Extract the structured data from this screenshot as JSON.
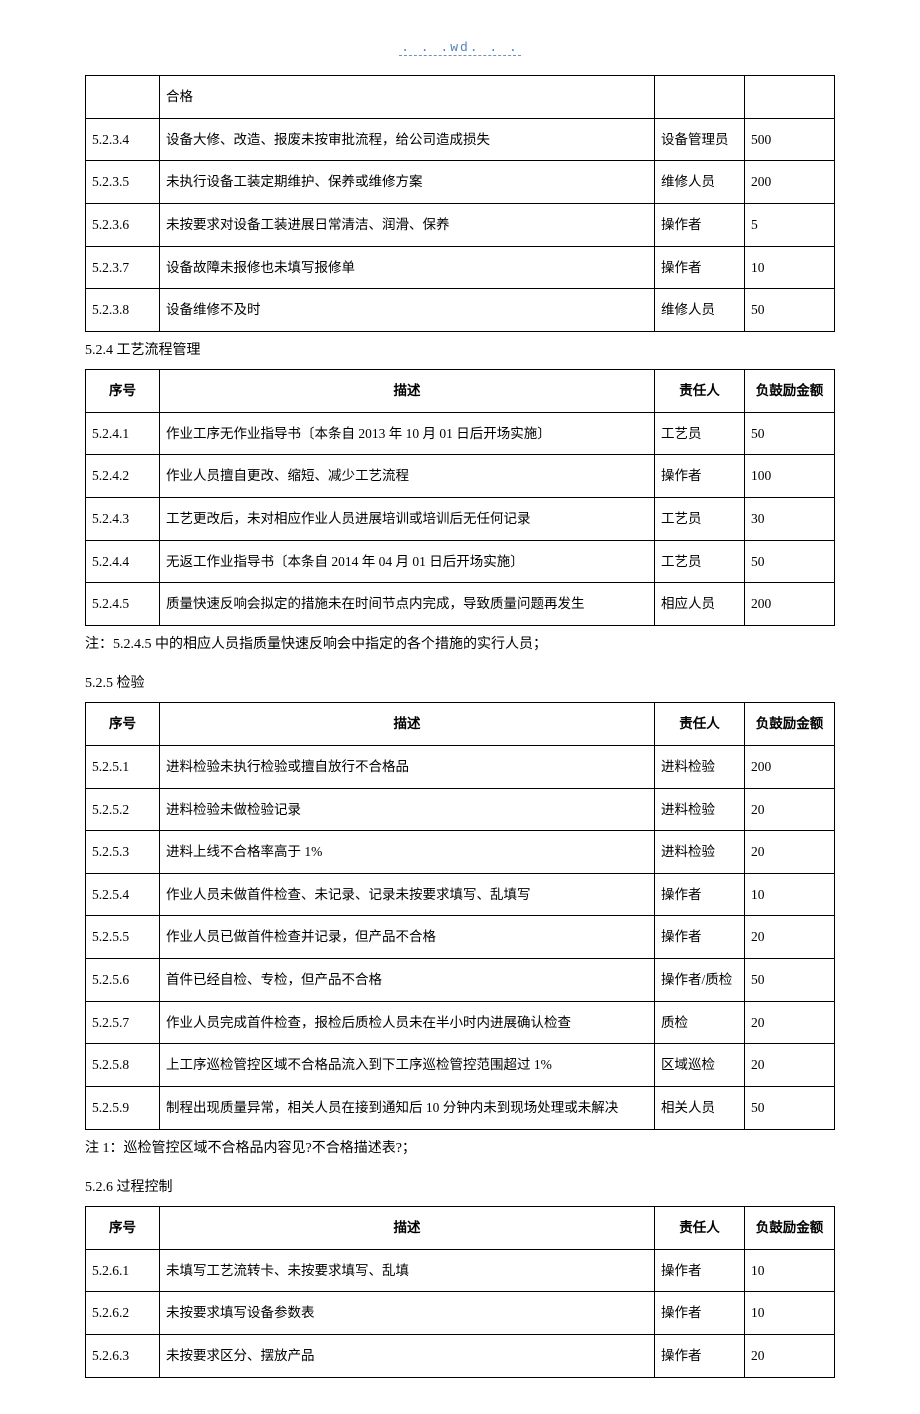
{
  "header": {
    "wd": ". . .wd. . ."
  },
  "table1": {
    "rows": [
      {
        "seq": "",
        "desc": "合格",
        "resp": "",
        "amt": ""
      },
      {
        "seq": "5.2.3.4",
        "desc": "设备大修、改造、报废未按审批流程，给公司造成损失",
        "resp": "设备管理员",
        "amt": "500"
      },
      {
        "seq": "5.2.3.5",
        "desc": "未执行设备工装定期维护、保养或维修方案",
        "resp": "维修人员",
        "amt": "200"
      },
      {
        "seq": "5.2.3.6",
        "desc": "未按要求对设备工装进展日常清洁、润滑、保养",
        "resp": "操作者",
        "amt": "5"
      },
      {
        "seq": "5.2.3.7",
        "desc": "设备故障未报修也未填写报修单",
        "resp": "操作者",
        "amt": "10"
      },
      {
        "seq": "5.2.3.8",
        "desc": "设备维修不及时",
        "resp": "维修人员",
        "amt": "50"
      }
    ]
  },
  "section524": {
    "title": "5.2.4 工艺流程管理"
  },
  "headers": {
    "seq": "序号",
    "desc": "描述",
    "resp": "责任人",
    "amt": "负鼓励金额"
  },
  "table2": {
    "rows": [
      {
        "seq": "5.2.4.1",
        "desc": "作业工序无作业指导书〔本条自 2013 年 10 月 01 日后开场实施〕",
        "resp": "工艺员",
        "amt": "50"
      },
      {
        "seq": "5.2.4.2",
        "desc": "作业人员擅自更改、缩短、减少工艺流程",
        "resp": "操作者",
        "amt": "100"
      },
      {
        "seq": "5.2.4.3",
        "desc": "工艺更改后，未对相应作业人员进展培训或培训后无任何记录",
        "resp": "工艺员",
        "amt": "30"
      },
      {
        "seq": "5.2.4.4",
        "desc": "无返工作业指导书〔本条自 2014 年 04 月 01 日后开场实施〕",
        "resp": "工艺员",
        "amt": "50"
      },
      {
        "seq": "5.2.4.5",
        "desc": "质量快速反响会拟定的措施未在时间节点内完成，导致质量问题再发生",
        "resp": "相应人员",
        "amt": "200"
      }
    ]
  },
  "note524": "注：5.2.4.5 中的相应人员指质量快速反响会中指定的各个措施的实行人员；",
  "section525": {
    "title": "5.2.5 检验"
  },
  "table3": {
    "rows": [
      {
        "seq": "5.2.5.1",
        "desc": "进料检验未执行检验或擅自放行不合格品",
        "resp": "进料检验",
        "amt": "200"
      },
      {
        "seq": "5.2.5.2",
        "desc": "进料检验未做检验记录",
        "resp": "进料检验",
        "amt": "20"
      },
      {
        "seq": "5.2.5.3",
        "desc": "进料上线不合格率高于 1%",
        "resp": "进料检验",
        "amt": "20"
      },
      {
        "seq": "5.2.5.4",
        "desc": "作业人员未做首件检查、未记录、记录未按要求填写、乱填写",
        "resp": "操作者",
        "amt": "10"
      },
      {
        "seq": "5.2.5.5",
        "desc": "作业人员已做首件检查并记录，但产品不合格",
        "resp": "操作者",
        "amt": "20"
      },
      {
        "seq": "5.2.5.6",
        "desc": "首件已经自检、专检，但产品不合格",
        "resp": "操作者/质检",
        "amt": "50"
      },
      {
        "seq": "5.2.5.7",
        "desc": "作业人员完成首件检查，报检后质检人员未在半小时内进展确认检查",
        "resp": "质检",
        "amt": "20"
      },
      {
        "seq": "5.2.5.8",
        "desc": "上工序巡检管控区域不合格品流入到下工序巡检管控范围超过 1%",
        "resp": "区域巡检",
        "amt": "20"
      },
      {
        "seq": "5.2.5.9",
        "desc": "制程出现质量异常，相关人员在接到通知后 10 分钟内未到现场处理或未解决",
        "resp": "相关人员",
        "amt": "50"
      }
    ]
  },
  "note525": "注 1：巡检管控区域不合格品内容见?不合格描述表?；",
  "section526": {
    "title": "5.2.6 过程控制"
  },
  "table4": {
    "rows": [
      {
        "seq": "5.2.6.1",
        "desc": "未填写工艺流转卡、未按要求填写、乱填",
        "resp": "操作者",
        "amt": "10"
      },
      {
        "seq": "5.2.6.2",
        "desc": "未按要求填写设备参数表",
        "resp": "操作者",
        "amt": "10"
      },
      {
        "seq": "5.2.6.3",
        "desc": "未按要求区分、摆放产品",
        "resp": "操作者",
        "amt": "20"
      }
    ]
  }
}
